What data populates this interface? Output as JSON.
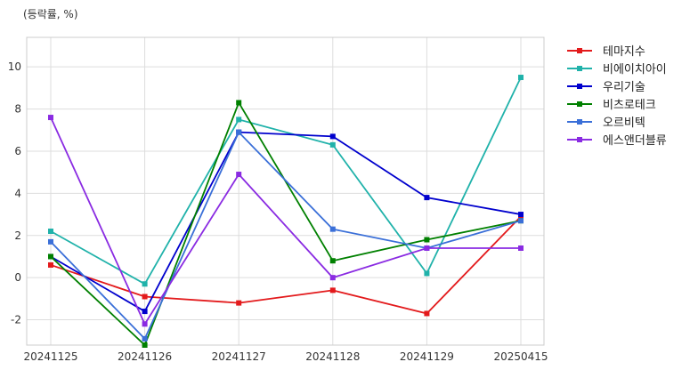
{
  "chart_data": {
    "type": "line",
    "unit_label": "(등락률, %)",
    "categories": [
      "20241125",
      "20241126",
      "20241127",
      "20241128",
      "20241129",
      "20250415"
    ],
    "ylim": [
      -3.2,
      11.4
    ],
    "yticks": [
      -2,
      0,
      2,
      4,
      6,
      8,
      10
    ],
    "grid": true,
    "legend_position": "right",
    "series": [
      {
        "name": "테마지수",
        "color": "#e31a1c",
        "values": [
          0.6,
          -0.9,
          -1.2,
          -0.6,
          -1.7,
          2.9
        ]
      },
      {
        "name": "비에이치아이",
        "color": "#20b2aa",
        "values": [
          2.2,
          -0.3,
          7.5,
          6.3,
          0.2,
          9.5
        ]
      },
      {
        "name": "우리기술",
        "color": "#0000cd",
        "values": [
          1.0,
          -1.6,
          6.9,
          6.7,
          3.8,
          3.0
        ]
      },
      {
        "name": "비츠로테크",
        "color": "#008000",
        "values": [
          1.0,
          -3.2,
          8.3,
          0.8,
          1.8,
          2.7
        ]
      },
      {
        "name": "오르비텍",
        "color": "#3a6fd8",
        "values": [
          1.7,
          -2.9,
          6.9,
          2.3,
          1.4,
          2.7
        ]
      },
      {
        "name": "에스앤더블류",
        "color": "#8a2be2",
        "values": [
          7.6,
          -2.2,
          4.9,
          0.0,
          1.4,
          1.4
        ]
      }
    ]
  }
}
